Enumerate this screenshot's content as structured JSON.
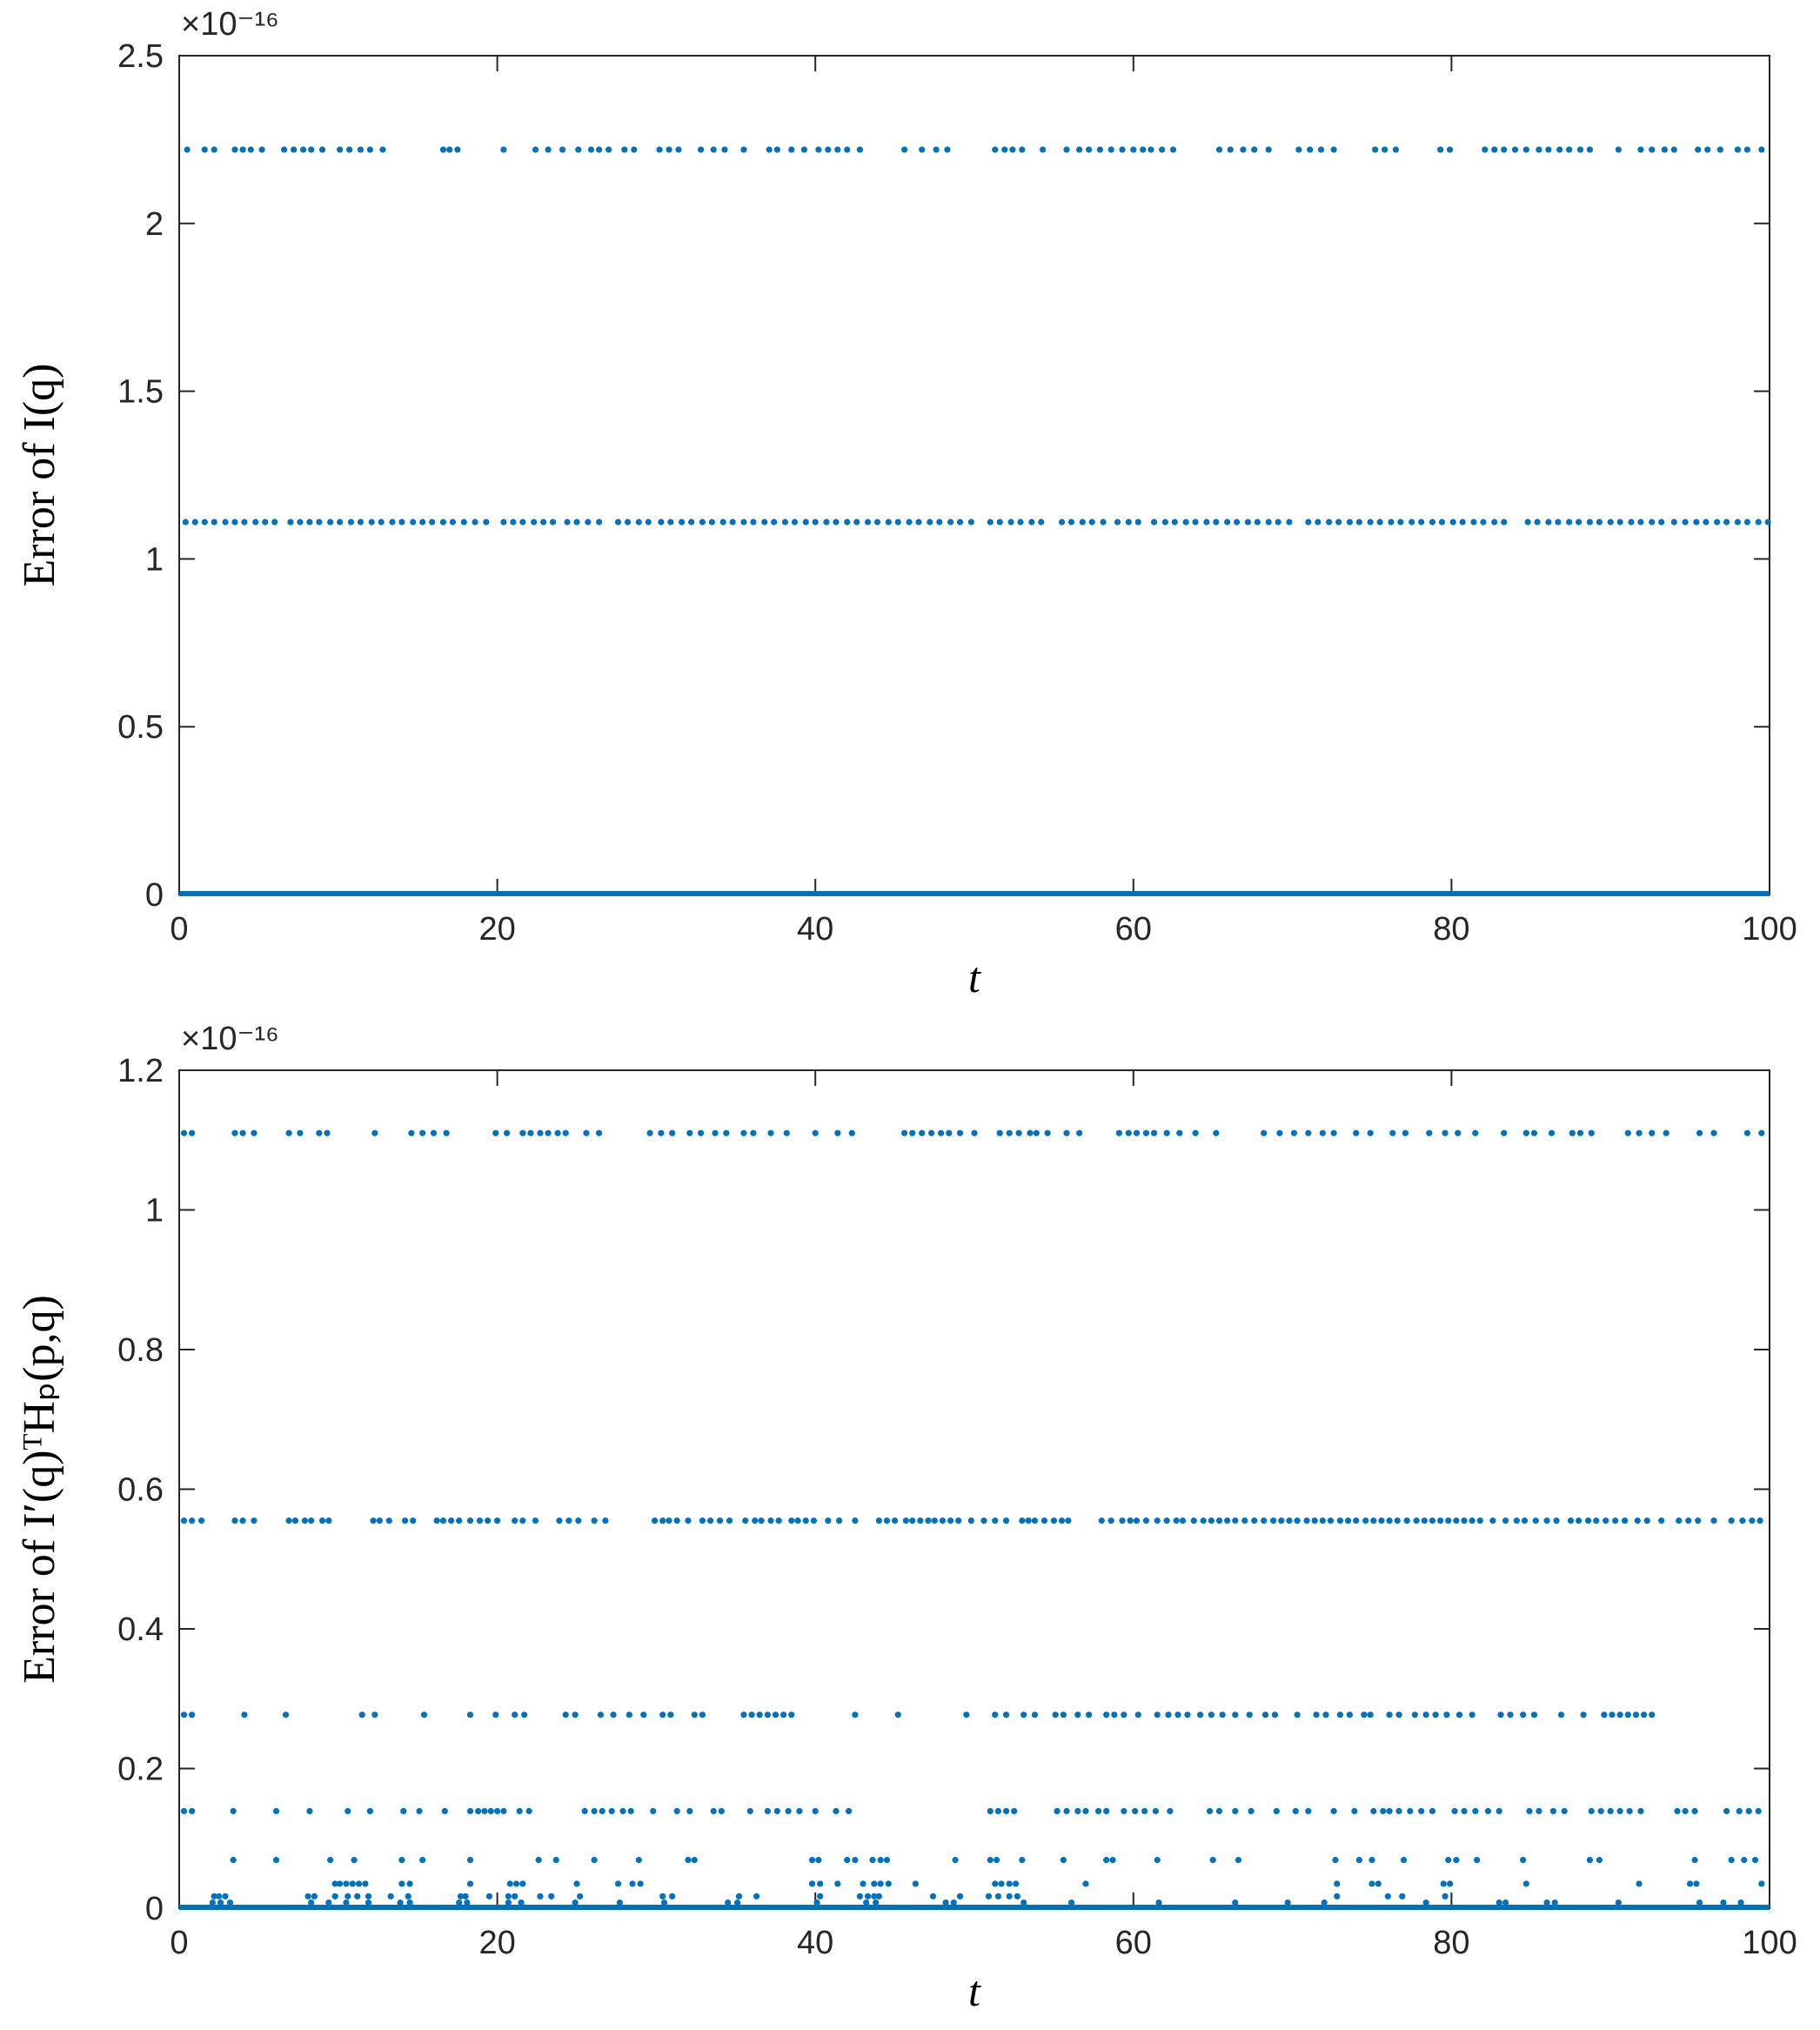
{
  "chart_data": [
    {
      "type": "scatter",
      "id": "top",
      "xlabel": "t",
      "ylabel": "Error of I(q)",
      "y_exponent": "×10⁻¹⁶",
      "xlim": [
        0,
        100
      ],
      "ylim": [
        0,
        2.5
      ],
      "xticks": [
        0,
        20,
        40,
        60,
        80,
        100
      ],
      "xtick_labels": [
        "0",
        "20",
        "40",
        "60",
        "80",
        "100"
      ],
      "yticks": [
        0,
        0.5,
        1,
        1.5,
        2,
        2.5
      ],
      "ytick_labels": [
        "0",
        "0.5",
        "1",
        "1.5",
        "2",
        "2.5"
      ],
      "grid": false,
      "color": "#0072BD",
      "series": [
        {
          "y": 2.22,
          "x": [
            0.5,
            1.6,
            2.2,
            3.5,
            4.0,
            4.5,
            5.2,
            6.6,
            7.2,
            7.8,
            8.3,
            9.0,
            10.1,
            10.7,
            11.4,
            12.0,
            12.8,
            16.6,
            17.0,
            17.5,
            20.4,
            22.4,
            23.2,
            24.1,
            25.1,
            25.9,
            26.4,
            27.0,
            28.0,
            28.6,
            30.2,
            30.8,
            31.4,
            32.8,
            33.6,
            34.3,
            35.5,
            37.1,
            37.6,
            38.5,
            39.3,
            40.2,
            40.8,
            41.4,
            42.0,
            42.8,
            45.6,
            46.7,
            47.6,
            48.3,
            51.3,
            51.9,
            52.4,
            53.0,
            54.3,
            55.8,
            56.6,
            57.2,
            57.9,
            58.6,
            59.3,
            60.0,
            60.6,
            61.1,
            61.8,
            62.5,
            65.4,
            66.1,
            66.9,
            67.6,
            68.5,
            70.4,
            71.1,
            71.8,
            72.6,
            75.2,
            75.8,
            76.5,
            79.3,
            79.9,
            82.1,
            82.7,
            83.3,
            84.0,
            84.7,
            85.5,
            86.1,
            86.8,
            87.4,
            88.1,
            88.7,
            90.5,
            91.9,
            92.6,
            93.4,
            94.0,
            95.5,
            96.1,
            96.9,
            98.0,
            98.6,
            99.5
          ]
        },
        {
          "y": 1.11,
          "x": [
            0.4,
            1.0,
            1.6,
            2.2,
            2.9,
            3.5,
            4.1,
            4.8,
            5.4,
            6.0,
            7.0,
            7.6,
            8.2,
            8.8,
            9.5,
            10.1,
            10.8,
            11.4,
            12.1,
            12.7,
            13.4,
            14.0,
            14.7,
            15.3,
            15.9,
            16.6,
            17.2,
            17.9,
            18.6,
            19.3,
            20.4,
            21.0,
            21.6,
            22.3,
            22.9,
            23.5,
            24.4,
            25.0,
            25.7,
            26.4,
            27.6,
            28.2,
            28.9,
            29.5,
            30.3,
            30.9,
            31.6,
            32.2,
            32.9,
            33.5,
            34.2,
            34.8,
            35.5,
            36.1,
            36.8,
            37.4,
            38.1,
            38.7,
            39.4,
            40.0,
            40.7,
            41.3,
            42.0,
            42.6,
            43.3,
            43.9,
            44.6,
            45.2,
            45.9,
            46.5,
            47.2,
            47.8,
            48.5,
            49.1,
            49.8,
            51.0,
            51.6,
            52.3,
            52.9,
            53.6,
            54.2,
            55.5,
            56.1,
            56.8,
            57.4,
            58.1,
            59.0,
            59.7,
            60.3,
            61.3,
            62.0,
            62.6,
            63.3,
            63.9,
            64.6,
            65.2,
            65.9,
            66.5,
            67.2,
            67.8,
            68.5,
            69.1,
            69.8,
            71.0,
            71.6,
            72.3,
            72.9,
            73.6,
            74.2,
            74.9,
            75.5,
            76.2,
            76.8,
            77.5,
            78.1,
            78.8,
            79.4,
            80.1,
            80.7,
            81.4,
            82.0,
            82.7,
            83.3,
            84.8,
            85.4,
            86.1,
            86.7,
            87.4,
            88.0,
            88.7,
            89.3,
            90.0,
            90.6,
            91.3,
            91.9,
            92.6,
            93.2,
            94.0,
            94.7,
            95.4,
            96.0,
            96.7,
            97.3,
            98.0,
            98.6,
            99.3,
            99.9
          ]
        },
        {
          "y": 0,
          "x": "continuous",
          "line": true
        }
      ]
    },
    {
      "type": "scatter",
      "id": "bottom",
      "xlabel": "t",
      "ylabel": "Error of I′(q)ᵀHₚ(p,q)",
      "y_exponent": "×10⁻¹⁶",
      "xlim": [
        0,
        100
      ],
      "ylim": [
        0,
        1.2
      ],
      "xticks": [
        0,
        20,
        40,
        60,
        80,
        100
      ],
      "xtick_labels": [
        "0",
        "20",
        "40",
        "60",
        "80",
        "100"
      ],
      "yticks": [
        0,
        0.2,
        0.4,
        0.6,
        0.8,
        1,
        1.2
      ],
      "ytick_labels": [
        "0",
        "0.2",
        "0.4",
        "0.6",
        "0.8",
        "1",
        "1.2"
      ],
      "grid": false,
      "color": "#0072BD",
      "series": [
        {
          "y": 1.11,
          "x": [
            0.3,
            0.8,
            3.5,
            4.0,
            4.7,
            6.9,
            7.6,
            8.8,
            9.3,
            12.3,
            14.6,
            15.3,
            16.0,
            16.8,
            19.9,
            20.6,
            21.6,
            22.1,
            22.7,
            23.2,
            23.8,
            24.3,
            25.6,
            26.4,
            29.6,
            30.3,
            31.0,
            32.1,
            32.8,
            33.7,
            34.4,
            35.5,
            36.1,
            37.2,
            38.2,
            40.0,
            41.4,
            42.3,
            45.6,
            46.1,
            46.7,
            47.3,
            47.9,
            48.4,
            49.1,
            50.0,
            51.6,
            52.2,
            52.8,
            53.5,
            53.9,
            54.6,
            55.8,
            56.6,
            59.1,
            59.7,
            60.2,
            60.8,
            61.3,
            62.1,
            62.9,
            63.9,
            65.2,
            68.2,
            69.2,
            70.1,
            71.0,
            71.9,
            72.6,
            74.0,
            74.9,
            76.3,
            77.1,
            78.6,
            79.6,
            80.4,
            81.5,
            83.3,
            84.7,
            85.2,
            86.3,
            87.6,
            88.1,
            88.8,
            91.1,
            91.8,
            92.6,
            93.5,
            95.6,
            96.5,
            98.6,
            99.5
          ]
        },
        {
          "y": 0.555,
          "x": [
            0.3,
            0.8,
            1.4,
            3.5,
            4.0,
            4.7,
            6.9,
            7.3,
            7.9,
            8.3,
            9.0,
            9.4,
            12.2,
            12.6,
            13.2,
            14.2,
            14.7,
            16.2,
            16.6,
            17.1,
            17.6,
            18.3,
            18.9,
            19.4,
            20.0,
            21.1,
            21.6,
            22.4,
            23.9,
            24.5,
            25.1,
            26.1,
            26.8,
            29.9,
            30.4,
            30.8,
            31.3,
            32.0,
            32.9,
            33.4,
            34.0,
            34.6,
            35.6,
            36.2,
            36.6,
            37.2,
            37.7,
            38.5,
            38.9,
            39.4,
            39.9,
            40.8,
            41.5,
            42.5,
            44.0,
            44.5,
            45.0,
            45.7,
            46.1,
            46.6,
            47.1,
            47.5,
            48.0,
            48.5,
            49.0,
            49.8,
            50.6,
            51.3,
            52.0,
            53.0,
            53.4,
            53.8,
            54.4,
            55.0,
            55.5,
            55.9,
            58.0,
            58.6,
            59.3,
            59.8,
            60.2,
            60.8,
            61.5,
            62.1,
            62.7,
            63.1,
            63.8,
            64.4,
            64.9,
            65.4,
            65.9,
            66.4,
            67.0,
            67.6,
            68.2,
            68.8,
            69.3,
            69.8,
            70.3,
            70.9,
            71.4,
            71.9,
            72.4,
            73.0,
            73.5,
            74.0,
            74.6,
            75.1,
            75.6,
            76.1,
            76.6,
            77.2,
            77.8,
            78.3,
            78.8,
            79.3,
            79.8,
            80.3,
            80.8,
            81.3,
            81.8,
            82.6,
            83.4,
            84.1,
            84.6,
            85.3,
            86.0,
            86.6,
            87.5,
            88.0,
            88.6,
            89.1,
            89.7,
            90.3,
            90.9,
            91.7,
            92.3,
            93.2,
            94.3,
            94.9,
            95.5,
            96.5,
            97.6,
            98.3,
            98.9,
            99.4
          ]
        },
        {
          "y": 0.277,
          "x": [
            0.3,
            0.8,
            4.1,
            6.7,
            11.5,
            12.3,
            15.4,
            18.3,
            19.9,
            21.1,
            21.7,
            24.3,
            24.9,
            26.5,
            27.3,
            28.3,
            29.2,
            30.4,
            30.9,
            32.4,
            32.9,
            35.5,
            36.0,
            36.5,
            37.0,
            37.5,
            38.0,
            38.5,
            42.5,
            45.2,
            49.5,
            51.3,
            52.0,
            53.1,
            53.8,
            55.1,
            55.6,
            56.5,
            57.2,
            58.3,
            58.8,
            59.4,
            60.3,
            61.5,
            62.2,
            62.8,
            63.4,
            64.2,
            64.9,
            65.6,
            66.4,
            67.3,
            68.3,
            68.9,
            70.3,
            71.5,
            72.1,
            73.0,
            73.6,
            74.5,
            74.9,
            76.1,
            76.7,
            77.7,
            78.4,
            79.0,
            79.7,
            80.5,
            81.3,
            83.1,
            83.7,
            84.5,
            85.2,
            86.9,
            88.3,
            89.6,
            90.1,
            90.6,
            91.1,
            91.6,
            92.1,
            92.6
          ]
        },
        {
          "y": 0.139,
          "x": [
            0.3,
            0.8,
            3.4,
            6.1,
            8.2,
            10.6,
            12.0,
            14.1,
            15.1,
            16.7,
            18.3,
            18.8,
            19.2,
            19.6,
            20.0,
            20.4,
            21.4,
            22.0,
            25.5,
            26.1,
            26.6,
            27.2,
            27.9,
            28.4,
            29.8,
            31.3,
            32.1,
            33.6,
            34.1,
            35.9,
            37.0,
            37.6,
            38.3,
            39.0,
            40.0,
            41.3,
            42.1,
            51.0,
            51.5,
            52.0,
            52.5,
            55.2,
            55.8,
            56.5,
            57.0,
            57.8,
            58.3,
            59.4,
            60.1,
            60.7,
            61.4,
            62.3,
            64.8,
            65.4,
            66.4,
            67.4,
            69.0,
            70.2,
            71.0,
            72.6,
            73.9,
            75.1,
            75.7,
            76.1,
            76.7,
            77.4,
            78.1,
            78.8,
            80.2,
            80.8,
            81.5,
            82.3,
            83.0,
            84.9,
            85.5,
            86.4,
            87.1,
            88.8,
            89.4,
            90.0,
            90.6,
            91.2,
            91.9,
            94.2,
            94.7,
            95.3,
            97.3,
            98.1,
            98.7,
            99.3
          ]
        },
        {
          "y": 0.069,
          "x": [
            3.4,
            6.1,
            9.5,
            11.0,
            14.0,
            15.3,
            18.3,
            22.6,
            23.7,
            26.1,
            28.9,
            32.0,
            32.4,
            39.8,
            40.2,
            42.0,
            42.5,
            43.6,
            44.1,
            44.5,
            48.8,
            51.0,
            51.4,
            53.0,
            55.6,
            58.3,
            58.7,
            61.5,
            65.0,
            66.6,
            72.7,
            74.2,
            75.0,
            77.0,
            79.8,
            80.3,
            81.6,
            84.5,
            88.7,
            89.3,
            95.3,
            97.6,
            98.4,
            99.1
          ]
        },
        {
          "y": 0.035,
          "x": [
            9.8,
            10.1,
            10.5,
            10.9,
            11.3,
            11.7,
            14.0,
            14.5,
            18.3,
            20.8,
            21.2,
            21.6,
            25.0,
            27.6,
            28.5,
            29.0,
            39.8,
            40.3,
            41.4,
            43.0,
            43.7,
            44.1,
            44.6,
            46.3,
            51.3,
            51.7,
            52.2,
            52.6,
            57.0,
            72.8,
            75.0,
            75.4,
            79.5,
            79.9,
            84.7,
            91.8,
            95.0,
            95.4,
            99.5
          ]
        },
        {
          "y": 0.017,
          "x": [
            2.2,
            2.5,
            2.9,
            8.1,
            8.5,
            9.8,
            10.6,
            11.2,
            11.9,
            13.3,
            14.4,
            17.7,
            18.0,
            19.5,
            20.7,
            21.1,
            22.7,
            23.4,
            25.2,
            30.4,
            31.0,
            35.2,
            36.3,
            40.3,
            42.8,
            43.3,
            43.7,
            44.0,
            47.4,
            49.1,
            50.9,
            51.5,
            52.2,
            52.7,
            72.8,
            76.0,
            76.9,
            79.6
          ]
        },
        {
          "y": 0.008,
          "x": [
            2.1,
            2.6,
            3.2,
            8.3,
            9.4,
            10.5,
            11.9,
            13.9,
            14.5,
            17.6,
            18.1,
            20.7,
            21.5,
            24.9,
            27.7,
            30.5,
            34.5,
            35.1,
            40.1,
            43.2,
            43.8,
            48.2,
            48.7,
            53.1,
            56.1,
            61.6,
            66.4,
            69.7,
            72.0,
            78.4,
            83.0,
            83.4,
            86.0,
            86.5,
            90.5,
            95.6,
            97.1,
            98.2
          ]
        },
        {
          "y": 0,
          "x": "continuous",
          "line": true
        }
      ]
    }
  ]
}
